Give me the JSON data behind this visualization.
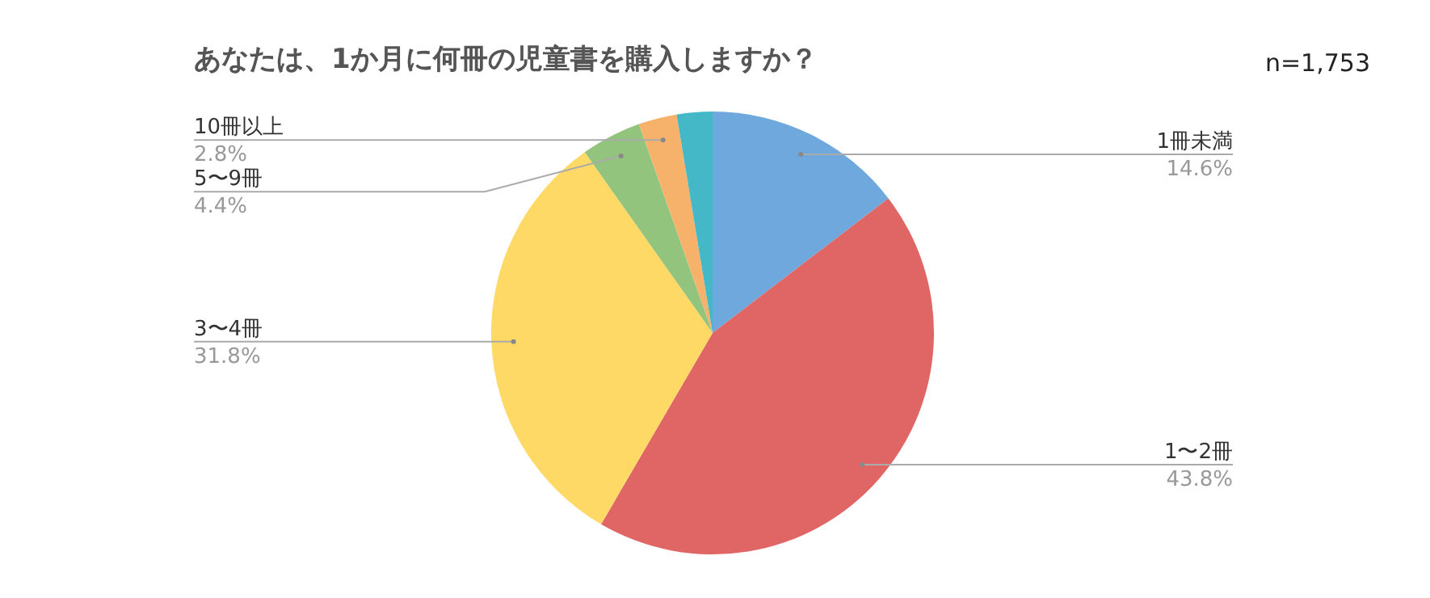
{
  "chart_data": {
    "type": "pie",
    "title": "あなたは、1か月に何冊の児童書を購入しますか？",
    "annotations": [
      "n=1,753"
    ],
    "categories": [
      "1冊未満",
      "1〜2冊",
      "3〜4冊",
      "5〜9冊",
      "10冊以上",
      null
    ],
    "values": [
      14.6,
      43.8,
      31.8,
      4.4,
      2.8,
      2.6
    ],
    "colors": [
      "#6fa8dc",
      "#e06666",
      "#ffd966",
      "#93c47d",
      "#f6b26b",
      "#45b8c8"
    ],
    "value_labels": [
      "14.6%",
      "43.8%",
      "31.8%",
      "4.4%",
      "2.8%",
      null
    ]
  }
}
